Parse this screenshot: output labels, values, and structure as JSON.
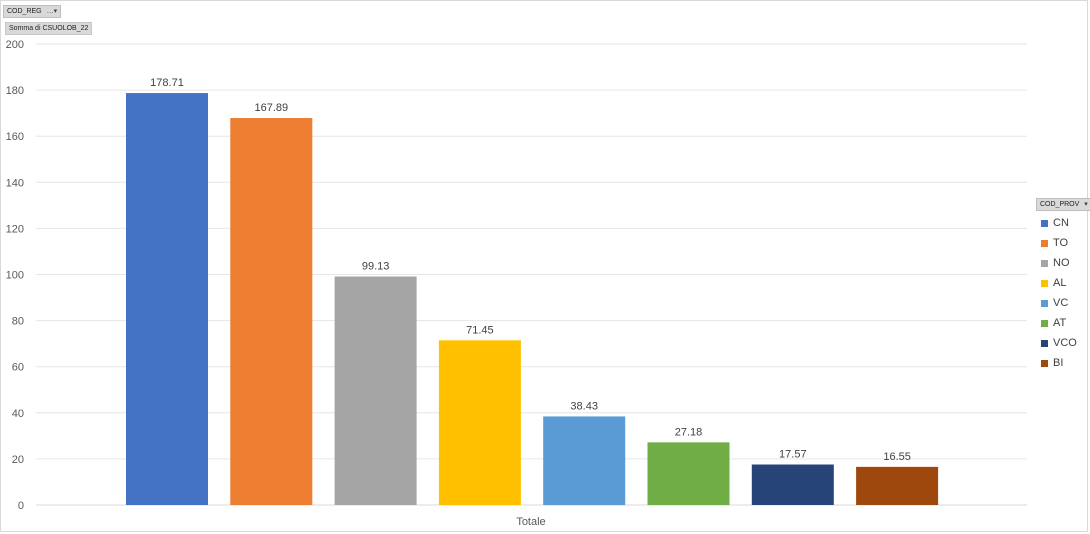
{
  "filters": {
    "row_field": "COD_REG",
    "row_field_icon": "filter-icon",
    "value_field": "Somma di CSUOLOB_22",
    "legend_field": "COD_PROV",
    "legend_field_icon": "dropdown-icon"
  },
  "chart_data": {
    "type": "bar",
    "categories": [
      "Totale"
    ],
    "series": [
      {
        "name": "CN",
        "values": [
          178.71
        ],
        "color": "#4472c4"
      },
      {
        "name": "TO",
        "values": [
          167.89
        ],
        "color": "#ed7d31"
      },
      {
        "name": "NO",
        "values": [
          99.13
        ],
        "color": "#a5a5a5"
      },
      {
        "name": "AL",
        "values": [
          71.45
        ],
        "color": "#ffc000"
      },
      {
        "name": "VC",
        "values": [
          38.43
        ],
        "color": "#5b9bd5"
      },
      {
        "name": "AT",
        "values": [
          27.18
        ],
        "color": "#70ad47"
      },
      {
        "name": "VCO",
        "values": [
          17.57
        ],
        "color": "#264478"
      },
      {
        "name": "BI",
        "values": [
          16.55
        ],
        "color": "#9e480e"
      }
    ],
    "data_labels": [
      "178.71",
      "167.89",
      "99.13",
      "71.45",
      "38.43",
      "27.18",
      "17.57",
      "16.55"
    ],
    "y_ticks": [
      "0",
      "20",
      "40",
      "60",
      "80",
      "100",
      "120",
      "140",
      "160",
      "180",
      "200"
    ],
    "ylim": [
      0,
      200
    ],
    "title": "",
    "xlabel": "",
    "ylabel": "",
    "grid": true,
    "legend_position": "right"
  }
}
